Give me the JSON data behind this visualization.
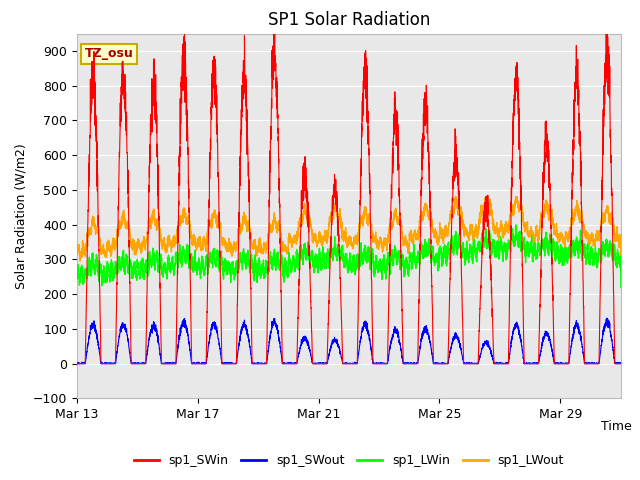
{
  "title": "SP1 Solar Radiation",
  "xlabel": "Time",
  "ylabel": "Solar Radiation (W/m2)",
  "ylim": [
    -100,
    950
  ],
  "yticks": [
    -100,
    0,
    100,
    200,
    300,
    400,
    500,
    600,
    700,
    800,
    900
  ],
  "xtick_labels": [
    "Mar 13",
    "Mar 17",
    "Mar 21",
    "Mar 25",
    "Mar 29"
  ],
  "colors": {
    "sp1_SWin": "#FF0000",
    "sp1_SWout": "#0000FF",
    "sp1_LWin": "#00FF00",
    "sp1_LWout": "#FFA500"
  },
  "legend_labels": [
    "sp1_SWin",
    "sp1_SWout",
    "sp1_LWin",
    "sp1_LWout"
  ],
  "annotation_text": "TZ_osu",
  "annotation_color": "#AA0000",
  "annotation_bg": "#FFFFCC",
  "annotation_border": "#CCAA00",
  "plot_bg": "#E8E8E8",
  "grid_color": "#FFFFFF",
  "title_fontsize": 12,
  "axis_fontsize": 9,
  "legend_fontsize": 9,
  "sw_peaks": [
    830,
    830,
    820,
    880,
    835,
    830,
    890,
    540,
    510,
    845,
    720,
    735,
    600,
    455,
    820,
    635,
    825,
    885
  ],
  "lwin_base": [
    255,
    265,
    270,
    285,
    278,
    273,
    272,
    290,
    295,
    285,
    280,
    300,
    315,
    325,
    330,
    320,
    310,
    305
  ],
  "lwout_base": [
    320,
    335,
    340,
    350,
    345,
    332,
    330,
    355,
    360,
    350,
    345,
    365,
    375,
    380,
    385,
    370,
    362,
    358
  ]
}
